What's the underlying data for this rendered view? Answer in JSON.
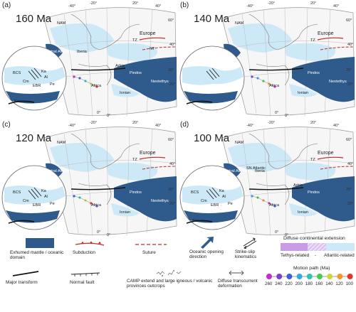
{
  "panels": [
    {
      "label": "(a)",
      "age": "160 Ma",
      "map_labels": {
        "nam": "NAM",
        "europe": "Europe",
        "iberia": "Iberia",
        "africa": "Africa",
        "adria": "Adria",
        "pindos": "Pindos",
        "neotethys": "Neotethys",
        "ionian": "Ionian",
        "central_atlantic": "Central Atlantic",
        "tz": "TZ",
        "nt": "NT",
        "bcs": "BCS",
        "cm": "Cm",
        "ebr": "EBR",
        "al": "Al",
        "pe": "Pe",
        "ka": "Ka",
        "ser": "Ser"
      },
      "grid": [
        "-40°",
        "-20°",
        "0°",
        "20°",
        "40°",
        "60°",
        "20°",
        "0°",
        "40°",
        "20°"
      ]
    },
    {
      "label": "(b)",
      "age": "140 Ma",
      "map_labels": {
        "nam": "NAM",
        "europe": "Europe",
        "africa": "Africa",
        "pindos": "Pindos",
        "neotethys": "Neotethys",
        "ionian": "Ionian",
        "tz": "TZ"
      },
      "grid": [
        "-40°",
        "-20°",
        "0°",
        "20°",
        "40°",
        "60°",
        "20°",
        "0°",
        "40°",
        "20°"
      ]
    },
    {
      "label": "(c)",
      "age": "120 Ma",
      "map_labels": {
        "nam": "NAM",
        "europe": "Europe",
        "africa": "Africa",
        "pindos": "Pindos",
        "neotethys": "Neotethys",
        "ionian": "Ionian",
        "central_atlantic": "Central Atlantic",
        "tz": "TZ",
        "bcs": "BCS",
        "cm": "Cm",
        "ebr": "EBR",
        "al": "Al",
        "pe": "Pe",
        "ka": "Ka"
      },
      "grid": [
        "-40°",
        "-20°",
        "0°",
        "20°",
        "40°",
        "60°",
        "20°",
        "0°",
        "40°",
        "20°"
      ]
    },
    {
      "label": "(d)",
      "age": "100 Ma",
      "map_labels": {
        "nam": "NAM",
        "europe": "Europe",
        "iberia": "Iberia",
        "africa": "Africa",
        "adria": "Adria",
        "pindos": "Pindos",
        "ionian": "Ionian",
        "central_atlantic": "Central Atlantic",
        "tz": "TZ",
        "sn_atlantic": "SN Atlantic",
        "bcs": "BCS",
        "cm": "Cm",
        "ebr": "EBR",
        "al": "Al",
        "pe": "Pe",
        "ka": "Ka",
        "ser": "Ser"
      },
      "grid": [
        "-40°",
        "-20°",
        "0°",
        "20°",
        "40°",
        "60°",
        "20°",
        "0°",
        "40°",
        "20°"
      ]
    }
  ],
  "legend": {
    "exhumed_mantle": "Exhumed mantle / oceanic domain",
    "subduction": "Subduction",
    "suture": "Suture",
    "oceanic_opening": "Oceanic opening direction",
    "strike_slip": "Strike-slip kinematics",
    "diffuse_extension_title": "Diffuse continental extension",
    "tethys_related": "Tethys-related",
    "dash": "-",
    "atlantic_related": "Atlantic-related",
    "major_transform": "Major transform",
    "normal_fault": "Normal fault",
    "camp": "CAMP extend and large igneous / volcanic provinces outcrops",
    "diffuse_transcurrent": "Diffuse transcurrent deformation",
    "motion_path_title": "Motion path (Ma)",
    "motion_path_ages": [
      "260",
      "240",
      "220",
      "200",
      "180",
      "160",
      "140",
      "120",
      "100"
    ],
    "motion_path_colors": [
      "#c62ad0",
      "#7b3fd6",
      "#3c5ee0",
      "#35a7e6",
      "#2fc4b0",
      "#3fcf4a",
      "#c9d93a",
      "#f39a26",
      "#e3352a"
    ]
  },
  "colors": {
    "ocean": "#2e5a8c",
    "light_blue": "#cde8f6",
    "tethys": "#c99be6",
    "subduction": "#c0282a"
  }
}
